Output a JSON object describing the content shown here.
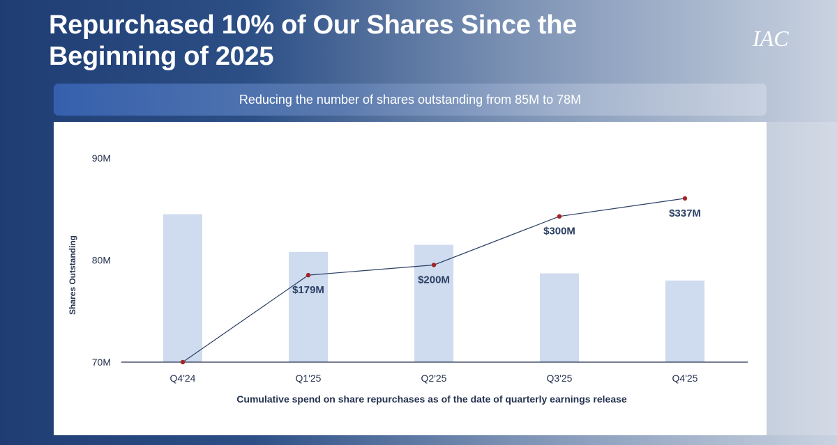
{
  "slide": {
    "title": "Repurchased 10% of Our Shares Since the Beginning of 2025",
    "logo_text": "IAC",
    "subtitle": "Reducing the number of shares outstanding from 85M to 78M"
  },
  "colors": {
    "bar": "#cfdcef",
    "line": "#2b3f63",
    "marker": "#a32424",
    "label": "#2b3f63",
    "axis": "#24324f"
  },
  "chart_data": {
    "type": "bar",
    "title": "Repurchased 10% of Our Shares Since the Beginning of 2025",
    "subtitle": "Reducing the number of shares outstanding from 85M to 78M",
    "xlabel": "Cumulative spend on share repurchases as of the date of quarterly earnings release",
    "ylabel": "Shares Outstanding",
    "categories": [
      "Q4'24",
      "Q1'25",
      "Q2'25",
      "Q3'25",
      "Q4'25"
    ],
    "ylim": [
      70,
      90
    ],
    "ytick_values": [
      70,
      80,
      90
    ],
    "ytick_labels": [
      "70M",
      "80M",
      "90M"
    ],
    "grid": false,
    "series": [
      {
        "name": "Shares Outstanding (M)",
        "type": "bar",
        "values": [
          84.5,
          80.8,
          81.5,
          78.7,
          78.0
        ]
      },
      {
        "name": "Cumulative repurchase spend ($M)",
        "type": "line",
        "values": [
          0,
          179,
          200,
          300,
          337
        ],
        "labels": [
          "",
          "$179M",
          "$200M",
          "$300M",
          "$337M"
        ],
        "secondary_axis_range": [
          0,
          420
        ]
      }
    ]
  }
}
